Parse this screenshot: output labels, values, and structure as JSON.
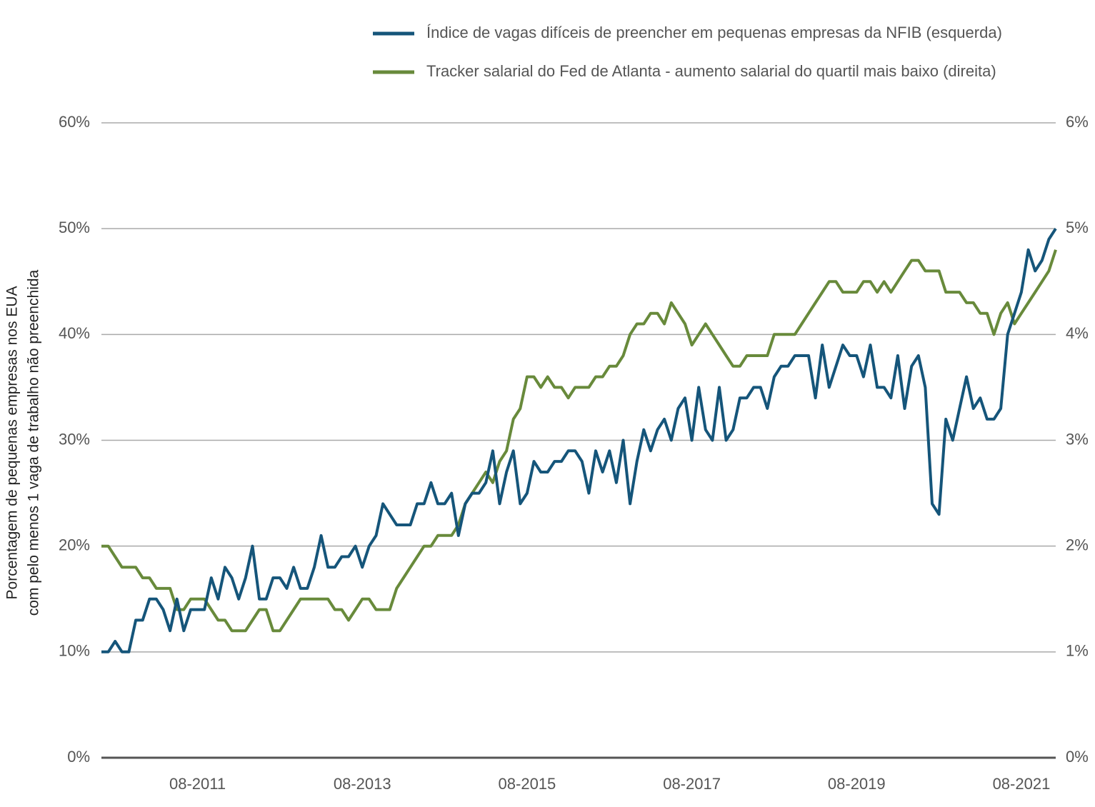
{
  "chart_data": {
    "type": "line",
    "ylabel": [
      "Porcentagem de pequenas empresas nos EUA",
      "com pelo menos 1 vaga de trabalho não preenchida"
    ],
    "x": [
      "06-2010",
      "07-2010",
      "08-2010",
      "09-2010",
      "10-2010",
      "11-2010",
      "12-2010",
      "01-2011",
      "02-2011",
      "03-2011",
      "04-2011",
      "05-2011",
      "06-2011",
      "07-2011",
      "08-2011",
      "09-2011",
      "10-2011",
      "11-2011",
      "12-2011",
      "01-2012",
      "02-2012",
      "03-2012",
      "04-2012",
      "05-2012",
      "06-2012",
      "07-2012",
      "08-2012",
      "09-2012",
      "10-2012",
      "11-2012",
      "12-2012",
      "01-2013",
      "02-2013",
      "03-2013",
      "04-2013",
      "05-2013",
      "06-2013",
      "07-2013",
      "08-2013",
      "09-2013",
      "10-2013",
      "11-2013",
      "12-2013",
      "01-2014",
      "02-2014",
      "03-2014",
      "04-2014",
      "05-2014",
      "06-2014",
      "07-2014",
      "08-2014",
      "09-2014",
      "10-2014",
      "11-2014",
      "12-2014",
      "01-2015",
      "02-2015",
      "03-2015",
      "04-2015",
      "05-2015",
      "06-2015",
      "07-2015",
      "08-2015",
      "09-2015",
      "10-2015",
      "11-2015",
      "12-2015",
      "01-2016",
      "02-2016",
      "03-2016",
      "04-2016",
      "05-2016",
      "06-2016",
      "07-2016",
      "08-2016",
      "09-2016",
      "10-2016",
      "11-2016",
      "12-2016",
      "01-2017",
      "02-2017",
      "03-2017",
      "04-2017",
      "05-2017",
      "06-2017",
      "07-2017",
      "08-2017",
      "09-2017",
      "10-2017",
      "11-2017",
      "12-2017",
      "01-2018",
      "02-2018",
      "03-2018",
      "04-2018",
      "05-2018",
      "06-2018",
      "07-2018",
      "08-2018",
      "09-2018",
      "10-2018",
      "11-2018",
      "12-2018",
      "01-2019",
      "02-2019",
      "03-2019",
      "04-2019",
      "05-2019",
      "06-2019",
      "07-2019",
      "08-2019",
      "09-2019",
      "10-2019",
      "11-2019",
      "12-2019",
      "01-2020",
      "02-2020",
      "03-2020",
      "04-2020",
      "05-2020",
      "06-2020",
      "07-2020",
      "08-2020",
      "09-2020",
      "10-2020",
      "11-2020",
      "12-2020",
      "01-2021",
      "02-2021",
      "03-2021",
      "04-2021",
      "05-2021",
      "06-2021",
      "07-2021",
      "08-2021",
      "09-2021",
      "10-2021",
      "11-2021",
      "12-2021",
      "01-2022"
    ],
    "xticks": [
      "08-2011",
      "08-2013",
      "08-2015",
      "08-2017",
      "08-2019",
      "08-2021"
    ],
    "series": [
      {
        "name": "Índice de vagas difíceis de preencher em pequenas empresas da NFIB (esquerda)",
        "color": "#15557a",
        "axis": "y",
        "values": [
          10,
          10,
          11,
          10,
          10,
          13,
          13,
          15,
          15,
          14,
          12,
          15,
          12,
          14,
          14,
          14,
          17,
          15,
          18,
          17,
          15,
          17,
          20,
          15,
          15,
          17,
          17,
          16,
          18,
          16,
          16,
          18,
          21,
          18,
          18,
          19,
          19,
          20,
          18,
          20,
          21,
          24,
          23,
          22,
          22,
          22,
          24,
          24,
          26,
          24,
          24,
          25,
          21,
          24,
          25,
          25,
          26,
          29,
          24,
          27,
          29,
          24,
          25,
          28,
          27,
          27,
          28,
          28,
          29,
          29,
          28,
          25,
          29,
          27,
          29,
          26,
          30,
          24,
          28,
          31,
          29,
          31,
          32,
          30,
          33,
          34,
          30,
          35,
          31,
          30,
          35,
          30,
          31,
          34,
          34,
          35,
          35,
          33,
          36,
          37,
          37,
          38,
          38,
          38,
          34,
          39,
          35,
          37,
          39,
          38,
          38,
          36,
          39,
          35,
          35,
          34,
          38,
          33,
          37,
          38,
          35,
          24,
          23,
          32,
          30,
          33,
          36,
          33,
          34,
          32,
          32,
          33,
          40,
          42,
          44,
          48,
          46,
          47,
          49,
          50
        ]
      },
      {
        "name": "Tracker salarial do Fed de Atlanta - aumento salarial do quartil mais baixo (direita)",
        "color": "#688a3b",
        "axis": "y2",
        "values": [
          2.0,
          2.0,
          1.9,
          1.8,
          1.8,
          1.8,
          1.7,
          1.7,
          1.6,
          1.6,
          1.6,
          1.4,
          1.4,
          1.5,
          1.5,
          1.5,
          1.4,
          1.3,
          1.3,
          1.2,
          1.2,
          1.2,
          1.3,
          1.4,
          1.4,
          1.2,
          1.2,
          1.3,
          1.4,
          1.5,
          1.5,
          1.5,
          1.5,
          1.5,
          1.4,
          1.4,
          1.3,
          1.4,
          1.5,
          1.5,
          1.4,
          1.4,
          1.4,
          1.6,
          1.7,
          1.8,
          1.9,
          2.0,
          2.0,
          2.1,
          2.1,
          2.1,
          2.2,
          2.4,
          2.5,
          2.6,
          2.7,
          2.6,
          2.8,
          2.9,
          3.2,
          3.3,
          3.6,
          3.6,
          3.5,
          3.6,
          3.5,
          3.5,
          3.4,
          3.5,
          3.5,
          3.5,
          3.6,
          3.6,
          3.7,
          3.7,
          3.8,
          4.0,
          4.1,
          4.1,
          4.2,
          4.2,
          4.1,
          4.3,
          4.2,
          4.1,
          3.9,
          4.0,
          4.1,
          4.0,
          3.9,
          3.8,
          3.7,
          3.7,
          3.8,
          3.8,
          3.8,
          3.8,
          4.0,
          4.0,
          4.0,
          4.0,
          4.1,
          4.2,
          4.3,
          4.4,
          4.5,
          4.5,
          4.4,
          4.4,
          4.4,
          4.5,
          4.5,
          4.4,
          4.5,
          4.4,
          4.5,
          4.6,
          4.7,
          4.7,
          4.6,
          4.6,
          4.6,
          4.4,
          4.4,
          4.4,
          4.3,
          4.3,
          4.2,
          4.2,
          4.0,
          4.2,
          4.3,
          4.1,
          4.2,
          4.3,
          4.4,
          4.5,
          4.6,
          4.8
        ]
      }
    ],
    "ylim": [
      0,
      60
    ],
    "yticks": [
      {
        "value": 0,
        "label": "0%"
      },
      {
        "value": 10,
        "label": "10%"
      },
      {
        "value": 20,
        "label": "20%"
      },
      {
        "value": 30,
        "label": "30%"
      },
      {
        "value": 40,
        "label": "40%"
      },
      {
        "value": 50,
        "label": "50%"
      },
      {
        "value": 60,
        "label": "60%"
      }
    ],
    "y2lim": [
      0,
      6
    ],
    "y2ticks": [
      {
        "value": 0,
        "label": "0%"
      },
      {
        "value": 1,
        "label": "1%"
      },
      {
        "value": 2,
        "label": "2%"
      },
      {
        "value": 3,
        "label": "3%"
      },
      {
        "value": 4,
        "label": "4%"
      },
      {
        "value": 5,
        "label": "5%"
      },
      {
        "value": 6,
        "label": "6%"
      }
    ],
    "grid": true,
    "legend": "top-right"
  }
}
